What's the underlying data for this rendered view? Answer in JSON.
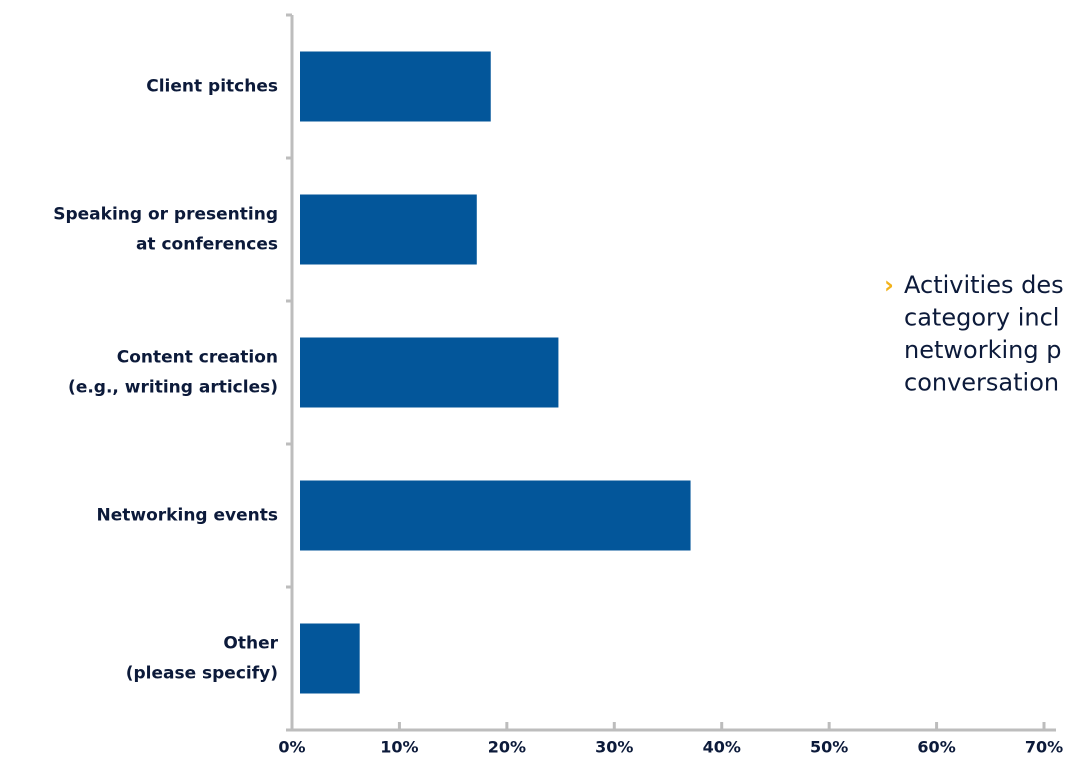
{
  "chart_data": {
    "type": "bar",
    "orientation": "horizontal",
    "categories": [
      [
        "Client pitches"
      ],
      [
        "Speaking or presenting",
        "at conferences"
      ],
      [
        "Content creation",
        "(e.g., writing articles)"
      ],
      [
        "Networking events"
      ],
      [
        "Other",
        "(please specify)"
      ]
    ],
    "values": [
      18.5,
      17.2,
      24.8,
      37.1,
      6.3
    ],
    "color": "#03569a",
    "xlim": [
      0,
      70
    ],
    "xticks": [
      {
        "value": 0,
        "label": "0%"
      },
      {
        "value": 10,
        "label": "10%"
      },
      {
        "value": 20,
        "label": "20%"
      },
      {
        "value": 30,
        "label": "30%"
      },
      {
        "value": 40,
        "label": "40%"
      },
      {
        "value": 50,
        "label": "50%"
      },
      {
        "value": 60,
        "label": "60%"
      },
      {
        "value": 70,
        "label": "70%"
      }
    ],
    "annotation": {
      "marker": "›",
      "lines": [
        "Activities des",
        "category incl",
        "networking p",
        "conversation"
      ]
    }
  }
}
